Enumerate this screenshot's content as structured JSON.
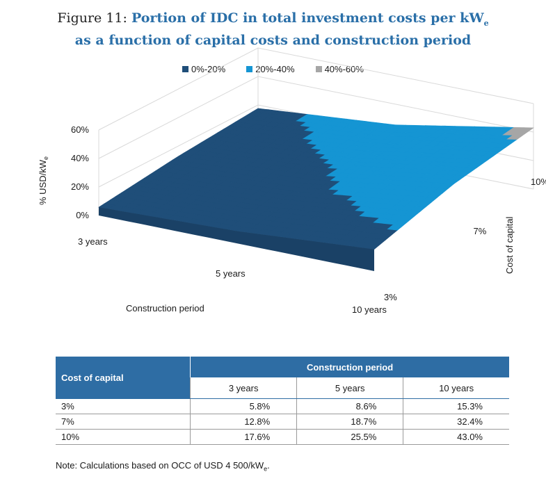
{
  "title": {
    "prefix": "Figure 11:",
    "line1": "Portion of IDC in total investment costs per kW",
    "line1_sub": "e",
    "line2": "as a function of capital costs and construction period"
  },
  "legend": [
    {
      "label": "0%-20%",
      "color": "#1f4e79"
    },
    {
      "label": "20%-40%",
      "color": "#1595d3"
    },
    {
      "label": "40%-60%",
      "color": "#a6a6a6"
    }
  ],
  "chart_data": {
    "type": "surface",
    "zlabel": "% USD/kW",
    "zlabel_sub": "e",
    "xlabel": "Construction period",
    "ylabel": "Cost of capital",
    "z_ticks": [
      "0%",
      "20%",
      "40%",
      "60%"
    ],
    "zlim": [
      0,
      60
    ],
    "x_categories": [
      "3 years",
      "5 years",
      "10 years"
    ],
    "y_categories": [
      "3%",
      "7%",
      "10%"
    ],
    "series": [
      {
        "name": "3%",
        "values": [
          5.8,
          8.6,
          15.3
        ]
      },
      {
        "name": "7%",
        "values": [
          12.8,
          18.7,
          32.4
        ]
      },
      {
        "name": "10%",
        "values": [
          17.6,
          25.5,
          43.0
        ]
      }
    ],
    "bands": [
      "0%-20%",
      "20%-40%",
      "40%-60%"
    ],
    "grid": true,
    "legend_position": "top"
  },
  "table": {
    "row_header": "Cost of capital",
    "col_group": "Construction period",
    "columns": [
      "3 years",
      "5 years",
      "10 years"
    ],
    "rows": [
      {
        "label": "3%",
        "values": [
          "5.8%",
          "8.6%",
          "15.3%"
        ]
      },
      {
        "label": "7%",
        "values": [
          "12.8%",
          "18.7%",
          "32.4%"
        ]
      },
      {
        "label": "10%",
        "values": [
          "17.6%",
          "25.5%",
          "43.0%"
        ]
      }
    ]
  },
  "note": {
    "text": "Note: Calculations based on OCC of USD 4 500/kW",
    "sub": "e",
    "end": "."
  }
}
